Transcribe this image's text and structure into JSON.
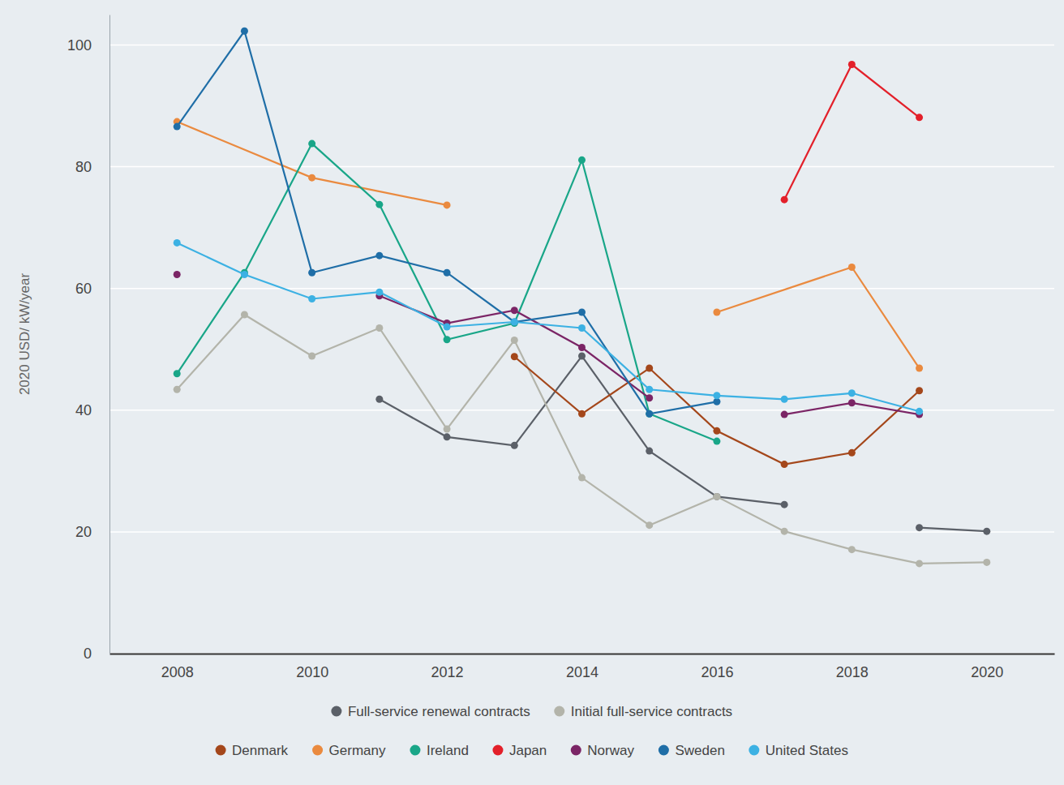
{
  "chart_data": {
    "type": "line",
    "y_label": "2020 USD/ kW/year",
    "x": [
      2008,
      2009,
      2010,
      2011,
      2012,
      2013,
      2014,
      2015,
      2016,
      2017,
      2018,
      2019,
      2020
    ],
    "xlim": [
      2007,
      2021
    ],
    "xticks": [
      2008,
      2010,
      2012,
      2014,
      2016,
      2018,
      2020
    ],
    "ylim": [
      0,
      105
    ],
    "yticks": [
      0,
      20,
      40,
      60,
      80,
      100
    ],
    "grid": true,
    "legend": "bottom",
    "marker": "circle",
    "line_style": "solid",
    "series": [
      {
        "name": "Full-service renewal contracts",
        "color": "#5b6068",
        "values": [
          null,
          null,
          null,
          41.8,
          35.6,
          34.2,
          48.9,
          33.3,
          25.8,
          24.5,
          null,
          20.7,
          20.1
        ]
      },
      {
        "name": "Initial full-service contracts",
        "color": "#b3b4aa",
        "values": [
          43.4,
          55.7,
          48.9,
          53.5,
          36.9,
          51.5,
          28.9,
          21.1,
          25.8,
          20.1,
          17.1,
          14.8,
          15.0
        ]
      },
      {
        "name": "Denmark",
        "color": "#a4471b",
        "values": [
          null,
          null,
          null,
          null,
          null,
          48.8,
          39.4,
          46.9,
          36.6,
          31.1,
          33.0,
          43.2,
          null
        ]
      },
      {
        "name": "Germany",
        "color": "#ea8a3f",
        "x": [
          2008,
          2010,
          2012,
          2014,
          2016,
          2018,
          2019
        ],
        "values": [
          87.4,
          78.2,
          73.7,
          null,
          56.1,
          63.5,
          46.9
        ]
      },
      {
        "name": "Ireland",
        "color": "#19a688",
        "values": [
          46.0,
          62.6,
          83.8,
          73.8,
          51.6,
          54.3,
          81.1,
          39.4,
          34.9,
          null,
          null,
          null,
          null
        ]
      },
      {
        "name": "Japan",
        "color": "#e3202a",
        "values": [
          null,
          null,
          null,
          null,
          null,
          null,
          null,
          null,
          null,
          74.6,
          96.8,
          88.1,
          null
        ]
      },
      {
        "name": "Norway",
        "color": "#7b2566",
        "values": [
          62.3,
          null,
          null,
          58.8,
          54.3,
          56.4,
          50.3,
          42.0,
          null,
          39.3,
          41.2,
          39.3,
          null
        ]
      },
      {
        "name": "Sweden",
        "color": "#1f6ea7",
        "values": [
          86.6,
          102.3,
          62.6,
          65.4,
          62.6,
          54.5,
          56.1,
          39.4,
          41.4,
          null,
          null,
          null,
          null
        ]
      },
      {
        "name": "United States",
        "color": "#3cb1e3",
        "values": [
          67.5,
          62.3,
          58.3,
          59.4,
          53.7,
          54.5,
          53.5,
          43.4,
          42.4,
          41.8,
          42.8,
          39.8,
          null
        ]
      }
    ]
  }
}
